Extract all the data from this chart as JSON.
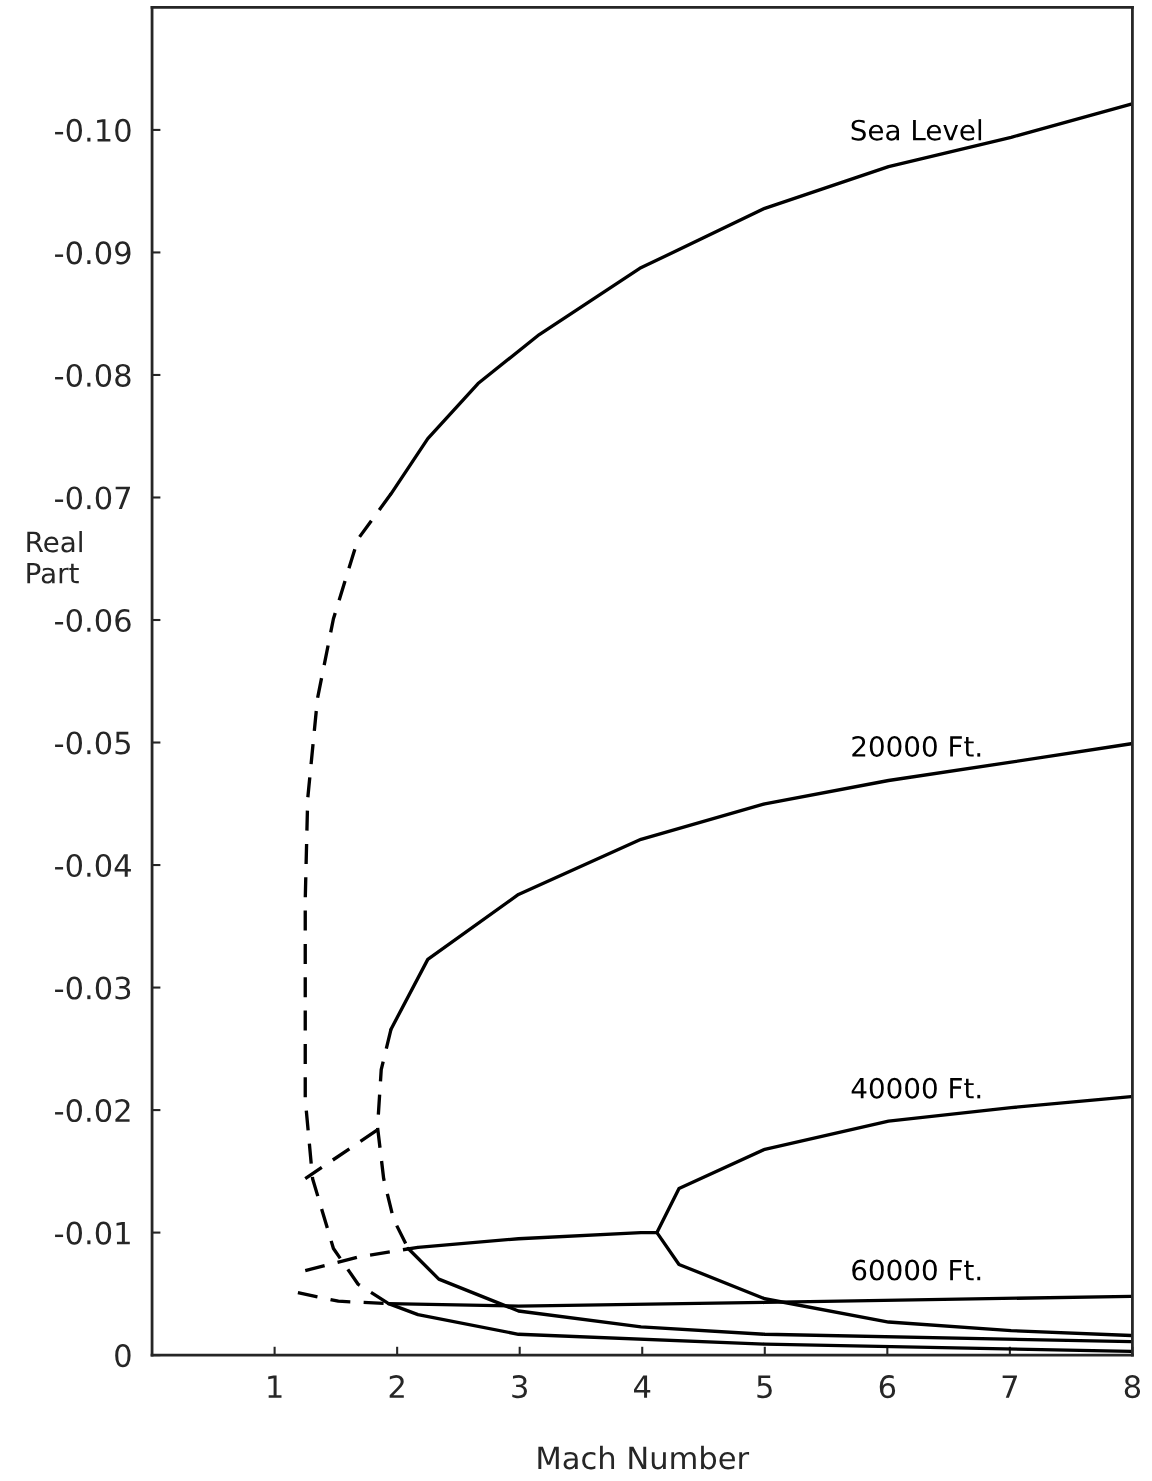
{
  "chart_data": {
    "type": "line",
    "xlabel": "Mach Number",
    "ylabel": "Real\nPart",
    "xlim": [
      0,
      8
    ],
    "ylim": [
      0,
      -0.11
    ],
    "xticks": [
      1,
      2,
      3,
      4,
      5,
      6,
      7,
      8
    ],
    "yticks": [
      {
        "value": 0,
        "label": "0"
      },
      {
        "value": -0.01,
        "label": "-0.01"
      },
      {
        "value": -0.02,
        "label": "-0.02"
      },
      {
        "value": -0.03,
        "label": "-0.03"
      },
      {
        "value": -0.04,
        "label": "-0.04"
      },
      {
        "value": -0.05,
        "label": "-0.05"
      },
      {
        "value": -0.06,
        "label": "-0.06"
      },
      {
        "value": -0.07,
        "label": "-0.07"
      },
      {
        "value": -0.08,
        "label": "-0.08"
      },
      {
        "value": -0.09,
        "label": "-0.09"
      },
      {
        "value": -0.1,
        "label": "-0.10"
      }
    ],
    "grid": false,
    "legend": false,
    "marker": "none",
    "series": [
      {
        "name": "Sea Level",
        "color": "#000000",
        "line_style": "solid",
        "x": [
          1.95,
          2.25,
          2.66,
          3.16,
          3.98,
          5.0,
          6.01,
          7.01,
          7.99
        ],
        "values": [
          -0.0703,
          -0.0748,
          -0.0793,
          -0.0833,
          -0.0887,
          -0.0936,
          -0.097,
          -0.0994,
          -0.1021
        ]
      },
      {
        "color": "#000000",
        "line_style": "dashed",
        "x": [
          1.95,
          1.68,
          1.48,
          1.35,
          1.27,
          1.25,
          1.25,
          1.25,
          1.31,
          1.48,
          1.68,
          1.93
        ],
        "values": [
          -0.0703,
          -0.0666,
          -0.0601,
          -0.0536,
          -0.0454,
          -0.0372,
          -0.0291,
          -0.0209,
          -0.0144,
          -0.0087,
          -0.0058,
          -0.0042
        ]
      },
      {
        "color": "#000000",
        "line_style": "solid",
        "x": [
          1.93,
          2.17,
          2.99,
          5.0,
          7.99
        ],
        "values": [
          -0.0042,
          -0.0033,
          -0.0017,
          -0.0009,
          -0.0003
        ]
      },
      {
        "color": "#000000",
        "line_style": "dashed",
        "x": [
          1.25,
          1.87
        ],
        "values": [
          -0.0144,
          -0.0186
        ]
      },
      {
        "name": "20000 Ft.",
        "color": "#000000",
        "line_style": "solid",
        "x": [
          1.95,
          2.25,
          2.99,
          3.99,
          5.0,
          6.01,
          7.01,
          7.99
        ],
        "values": [
          -0.0266,
          -0.0323,
          -0.0376,
          -0.0421,
          -0.045,
          -0.0469,
          -0.0484,
          -0.0499
        ]
      },
      {
        "color": "#000000",
        "line_style": "dashed",
        "x": [
          1.95,
          1.87,
          1.84,
          1.89,
          1.97,
          2.09
        ],
        "values": [
          -0.0266,
          -0.0233,
          -0.0186,
          -0.0144,
          -0.0111,
          -0.0087
        ]
      },
      {
        "color": "#000000",
        "line_style": "solid",
        "x": [
          2.09,
          2.34,
          2.99,
          3.99,
          5.0,
          7.99
        ],
        "values": [
          -0.0087,
          -0.0062,
          -0.0036,
          -0.0023,
          -0.0017,
          -0.0011
        ]
      },
      {
        "name": "40000 Ft.",
        "color": "#000000",
        "line_style": "solid",
        "x": [
          7.99,
          7.01,
          6.01,
          5.0,
          4.3,
          4.12,
          4.3,
          5.0,
          6.01,
          7.01,
          7.99
        ],
        "values": [
          -0.0211,
          -0.0202,
          -0.0191,
          -0.0168,
          -0.0136,
          -0.01,
          -0.0074,
          -0.0046,
          -0.0027,
          -0.002,
          -0.0016
        ]
      },
      {
        "color": "#000000",
        "line_style": "dashed",
        "x": [
          1.25,
          1.68,
          2.17
        ],
        "values": [
          -0.0069,
          -0.008,
          -0.0088
        ]
      },
      {
        "color": "#000000",
        "line_style": "solid",
        "x": [
          2.17,
          2.99,
          3.99,
          4.12
        ],
        "values": [
          -0.0088,
          -0.0095,
          -0.01,
          -0.01
        ]
      },
      {
        "color": "#000000",
        "line_style": "dashed",
        "x": [
          1.19,
          1.52,
          1.93
        ],
        "values": [
          -0.0051,
          -0.0044,
          -0.0042
        ]
      },
      {
        "name": "60000 Ft.",
        "color": "#000000",
        "line_style": "solid",
        "x": [
          1.93,
          2.99,
          5.0,
          7.99
        ],
        "values": [
          -0.0042,
          -0.004,
          -0.0043,
          -0.0048
        ]
      }
    ]
  }
}
